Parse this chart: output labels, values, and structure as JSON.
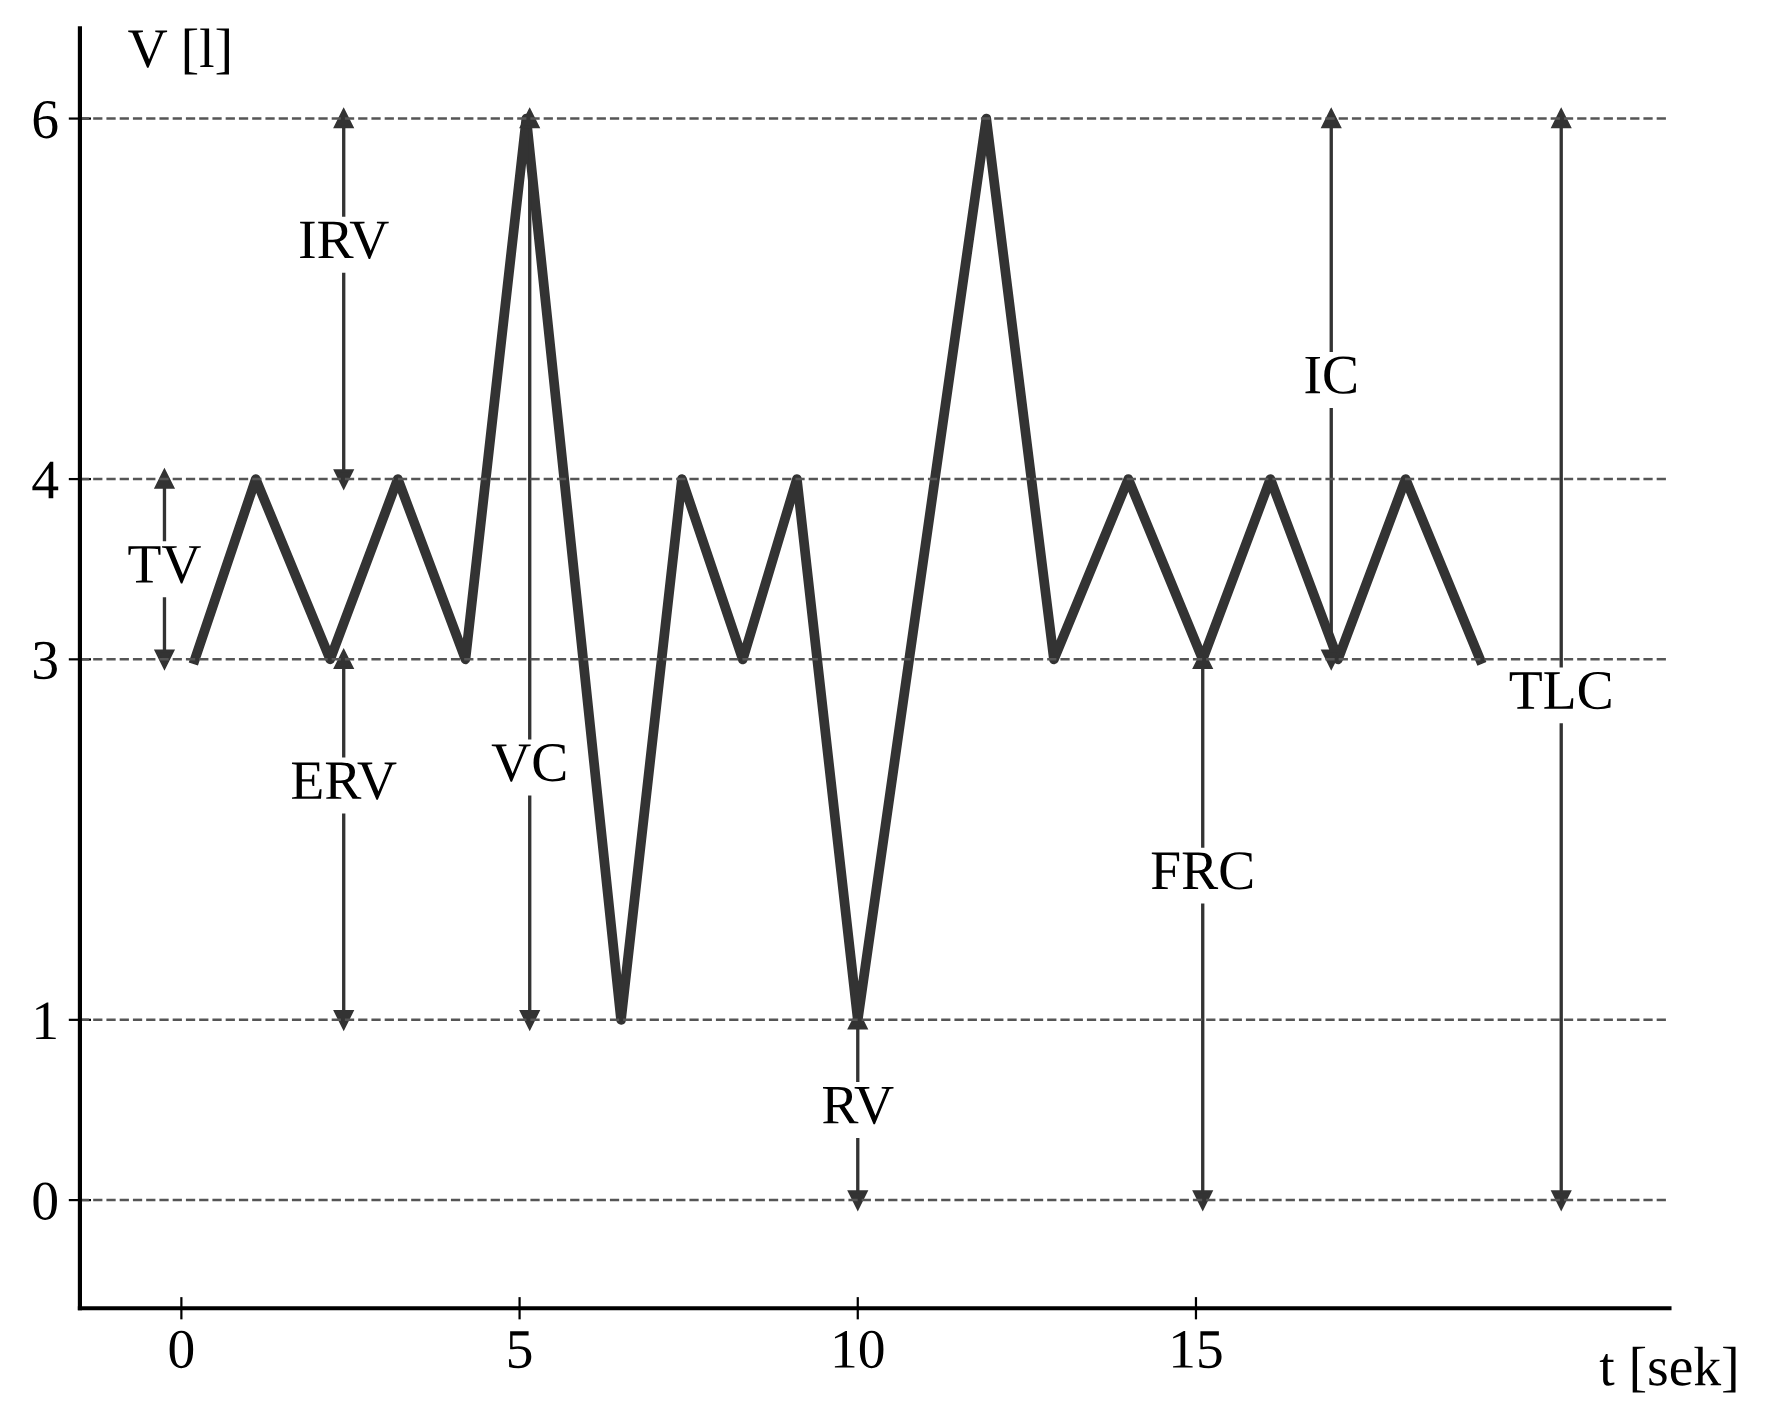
{
  "chart_data": {
    "type": "line",
    "xlabel": "t [sek]",
    "ylabel": "V [l]",
    "xlim": [
      -1.5,
      22
    ],
    "ylim": [
      -0.6,
      6.5
    ],
    "xticks": [
      0,
      5,
      10,
      15
    ],
    "yticks": [
      0,
      1,
      3,
      4,
      6
    ],
    "grid": false,
    "legend": false,
    "marker": "none",
    "line_style": "solid",
    "series": [
      {
        "color": "#333333",
        "x": [
          0.2,
          1.1,
          2.2,
          3.2,
          4.2,
          5.1,
          6.5,
          7.4,
          8.3,
          9.1,
          10,
          11.9,
          12.9,
          14,
          15.1,
          16.1,
          17.1,
          18.1,
          19.2
        ],
        "values": [
          3,
          4,
          3,
          4,
          3,
          6,
          1,
          4,
          3,
          4,
          1,
          6,
          3,
          4,
          3,
          4,
          3,
          4,
          3
        ]
      },
      {
        "type": "line",
        "marker": "triangle",
        "color": "#333333",
        "x": [
          2.4,
          2.4
        ],
        "values": [
          4,
          6
        ]
      },
      {
        "type": "line",
        "marker": "triangle",
        "color": "#333333",
        "x": [
          -0.25,
          -0.25
        ],
        "values": [
          3,
          4
        ]
      },
      {
        "type": "line",
        "marker": "triangle",
        "color": "#333333",
        "x": [
          2.4,
          2.4
        ],
        "values": [
          1,
          3
        ]
      },
      {
        "type": "line",
        "marker": "triangle",
        "color": "#333333",
        "x": [
          5.15,
          5.15
        ],
        "values": [
          1,
          6
        ]
      },
      {
        "type": "line",
        "marker": "triangle",
        "color": "#333333",
        "x": [
          10,
          10
        ],
        "values": [
          0,
          1
        ]
      },
      {
        "type": "line",
        "marker": "triangle",
        "color": "#333333",
        "x": [
          17,
          17
        ],
        "values": [
          3,
          6
        ]
      },
      {
        "type": "line",
        "marker": "triangle",
        "color": "#333333",
        "x": [
          15.1,
          15.1
        ],
        "values": [
          0,
          3
        ]
      },
      {
        "type": "line",
        "marker": "triangle",
        "color": "#333333",
        "x": [
          20.4,
          20.4
        ],
        "values": [
          0,
          6
        ]
      }
    ],
    "ref_lines": [
      {
        "axis": "y",
        "value": 6,
        "line_style": "dashed"
      },
      {
        "axis": "y",
        "value": 4,
        "line_style": "dashed"
      },
      {
        "axis": "y",
        "value": 3,
        "line_style": "dashed"
      },
      {
        "axis": "y",
        "value": 1,
        "line_style": "dashed"
      },
      {
        "axis": "y",
        "value": 0,
        "line_style": "dashed"
      }
    ],
    "annotations": [
      {
        "text": "IRV",
        "x": 2.4,
        "y": 5.3
      },
      {
        "text": "TV",
        "x": -0.25,
        "y": 3.5
      },
      {
        "text": "ERV",
        "x": 2.4,
        "y": 2.3
      },
      {
        "text": "VC",
        "x": 5.15,
        "y": 2.4
      },
      {
        "text": "RV",
        "x": 10,
        "y": 0.5
      },
      {
        "text": "IC",
        "x": 17,
        "y": 4.55
      },
      {
        "text": "FRC",
        "x": 15.1,
        "y": 1.8
      },
      {
        "text": "TLC",
        "x": 20.4,
        "y": 2.8
      }
    ]
  }
}
